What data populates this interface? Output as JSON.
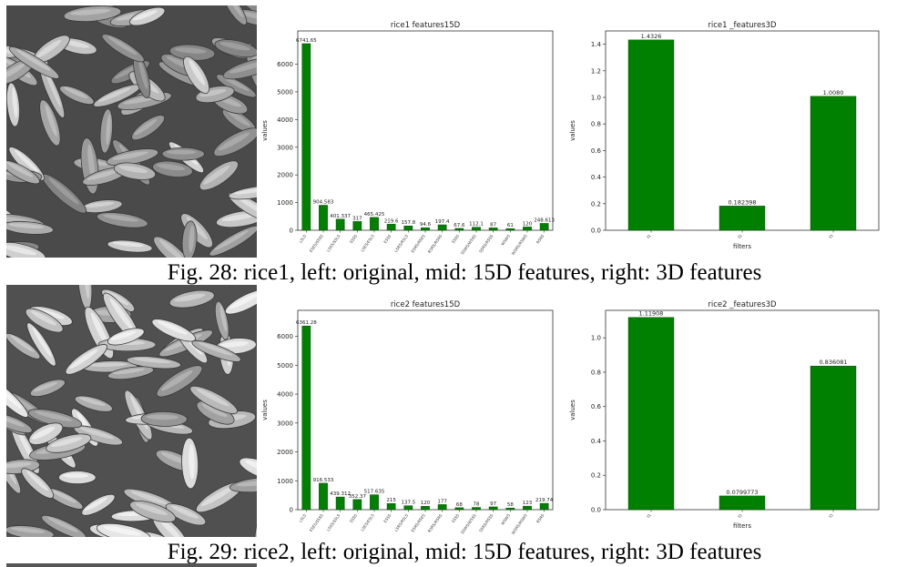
{
  "figures": [
    {
      "caption": "Fig. 28: rice1, left: original, mid: 15D features, right: 3D features",
      "photo": {
        "name": "rice1"
      }
    },
    {
      "caption": "Fig. 29: rice2, left: original, mid: 15D features, right: 3D features",
      "photo": {
        "name": "rice2"
      }
    }
  ],
  "chart_data": [
    {
      "type": "bar",
      "title": "rice1 features15D",
      "xlabel": "",
      "ylabel": "values",
      "categories": [
        "L5L5",
        "E5E5/S5S5",
        "L5S5/S5L5",
        "S5S5",
        "L5E5/E5L5",
        "E5S5",
        "L5R5/R5L5",
        "E5R5/R5E5",
        "R5R5/R5R5",
        "S5S5",
        "S5W5/W5S5",
        "S5R5/R5S5",
        "W5W5",
        "W5R5/R5W5",
        "R5R5"
      ],
      "values": [
        6741.65,
        904.583,
        401.337,
        317.0,
        465.425,
        219.6,
        157.8,
        94.6,
        197.4,
        67.6,
        112.1,
        87.0,
        61.0,
        120.0,
        248.613
      ],
      "value_labels": [
        "6741.65",
        "904.583",
        "401.337",
        "317",
        "465.425",
        "219.6",
        "157.8",
        "94.6",
        "197.4",
        "67.6",
        "112.1",
        "87",
        "61",
        "120",
        "248.613"
      ],
      "yticks": [
        0,
        1000,
        2000,
        3000,
        4000,
        5000,
        6000
      ],
      "ylim": [
        0,
        7200
      ],
      "color": "#008000"
    },
    {
      "type": "bar",
      "title": "rice1 _features3D",
      "xlabel": "filters",
      "ylabel": "values",
      "categories": [
        "f1",
        "f2",
        "f3"
      ],
      "values": [
        1.4326,
        0.182398,
        1.008
      ],
      "value_labels": [
        "1.4326",
        "0.182398",
        "1.0080"
      ],
      "yticks": [
        0.0,
        0.2,
        0.4,
        0.6,
        0.8,
        1.0,
        1.2,
        1.4
      ],
      "ylim": [
        0,
        1.5
      ],
      "color": "#008000"
    },
    {
      "type": "bar",
      "title": "rice2 features15D",
      "xlabel": "",
      "ylabel": "values",
      "categories": [
        "L5L5",
        "E5E5/S5S5",
        "L5S5/S5L5",
        "S5S5",
        "L5E5/E5L5",
        "E5S5",
        "L5R5/R5L5",
        "E5R5/R5E5",
        "R5R5/R5R5",
        "S5S5",
        "S5W5/W5S5",
        "S5R5/R5S5",
        "W5W5",
        "W5R5/R5W5",
        "R5R5"
      ],
      "values": [
        6361.28,
        916.533,
        439.312,
        352.37,
        517.635,
        215.0,
        137.5,
        120.0,
        177.0,
        68.0,
        78.0,
        97.0,
        58.0,
        123.0,
        219.74
      ],
      "value_labels": [
        "6361.28",
        "916.533",
        "439.312",
        "352.37",
        "517.635",
        "215",
        "137.5",
        "120",
        "177",
        "68",
        "78",
        "97",
        "58",
        "123",
        "219.74"
      ],
      "yticks": [
        0,
        1000,
        2000,
        3000,
        4000,
        5000,
        6000
      ],
      "ylim": [
        0,
        6900
      ],
      "color": "#008000"
    },
    {
      "type": "bar",
      "title": "rice2 _features3D",
      "xlabel": "filters",
      "ylabel": "values",
      "categories": [
        "f1",
        "f2",
        "f3"
      ],
      "values": [
        1.11908,
        0.0799773,
        0.836081
      ],
      "value_labels": [
        "1.11908",
        "0.0799773",
        "0.836081"
      ],
      "yticks": [
        0.0,
        0.2,
        0.4,
        0.6,
        0.8,
        1.0
      ],
      "ylim": [
        0,
        1.16
      ],
      "color": "#008000"
    }
  ]
}
